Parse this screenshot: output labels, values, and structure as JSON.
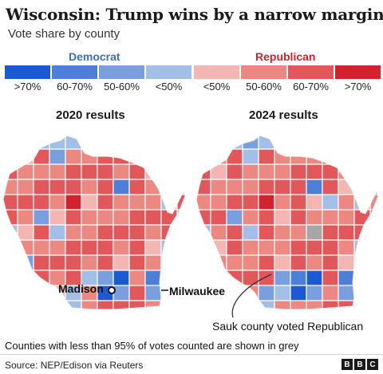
{
  "title": "Wisconsin: Trump wins by a narrow margin",
  "subtitle": "Vote share by county",
  "legend": {
    "democrat_heading": "Democrat",
    "republican_heading": "Republican",
    "democrat": [
      {
        "label": ">70%",
        "color": "#1c5ad3"
      },
      {
        "label": "60-70%",
        "color": "#4e7fd8"
      },
      {
        "label": "50-60%",
        "color": "#799fdf"
      },
      {
        "label": "<50%",
        "color": "#a3bfe8"
      }
    ],
    "republican": [
      {
        "label": "<50%",
        "color": "#f4b6b2"
      },
      {
        "label": "50-60%",
        "color": "#ec8882"
      },
      {
        "label": "60-70%",
        "color": "#e2575a"
      },
      {
        "label": ">70%",
        "color": "#d2222d"
      }
    ]
  },
  "maps": [
    {
      "title": "2020 results"
    },
    {
      "title": "2024 results"
    }
  ],
  "annotations": {
    "madison": "Madison",
    "milwaukee": "Milwaukee",
    "sauk": "Sauk county voted Republican"
  },
  "note": "Counties with less than 95% of votes counted are shown in grey",
  "source": "Source: NEP/Edison via Reuters",
  "logo": [
    "B",
    "B",
    "C"
  ],
  "colors": {
    "grey": "#a6a6a6",
    "border": "#ffffff"
  }
}
